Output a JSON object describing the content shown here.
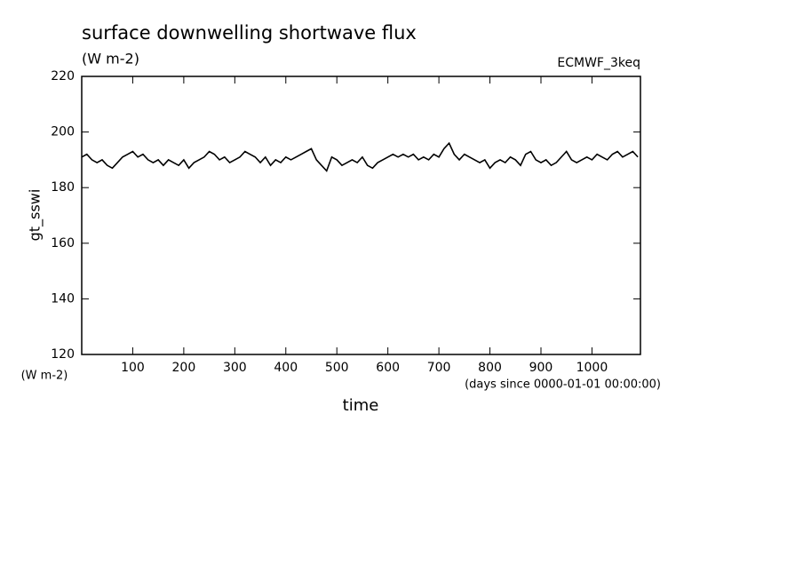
{
  "chart_data": {
    "type": "line",
    "title": "surface downwelling shortwave flux",
    "subtitle": "(W m-2)",
    "source": "ECMWF_3keq",
    "y_label": "gt_sswi",
    "y_units": "(W m-2)",
    "x_label": "time",
    "x_units": "(days since 0000-01-01 00:00:00)",
    "xlim": [
      0,
      1095
    ],
    "ylim": [
      120,
      220
    ],
    "xticks": [
      100,
      200,
      300,
      400,
      500,
      600,
      700,
      800,
      900,
      1000
    ],
    "yticks": [
      120,
      140,
      160,
      180,
      200,
      220
    ],
    "series": [
      {
        "color": "#000000",
        "x": [
          0,
          10,
          20,
          30,
          40,
          50,
          60,
          70,
          80,
          90,
          100,
          110,
          120,
          130,
          140,
          150,
          160,
          170,
          180,
          190,
          200,
          210,
          220,
          230,
          240,
          250,
          260,
          270,
          280,
          290,
          300,
          310,
          320,
          330,
          340,
          350,
          360,
          370,
          380,
          390,
          400,
          410,
          420,
          430,
          440,
          450,
          460,
          470,
          480,
          490,
          500,
          510,
          520,
          530,
          540,
          550,
          560,
          570,
          580,
          590,
          600,
          610,
          620,
          630,
          640,
          650,
          660,
          670,
          680,
          690,
          700,
          710,
          720,
          730,
          740,
          750,
          760,
          770,
          780,
          790,
          800,
          810,
          820,
          830,
          840,
          850,
          860,
          870,
          880,
          890,
          900,
          910,
          920,
          930,
          940,
          950,
          960,
          970,
          980,
          990,
          1000,
          1010,
          1020,
          1030,
          1040,
          1050,
          1060,
          1070,
          1080,
          1090
        ],
        "values": [
          191,
          192,
          190,
          189,
          190,
          188,
          187,
          189,
          191,
          192,
          193,
          191,
          192,
          190,
          189,
          190,
          188,
          190,
          189,
          188,
          190,
          187,
          189,
          190,
          191,
          193,
          192,
          190,
          191,
          189,
          190,
          191,
          193,
          192,
          191,
          189,
          191,
          188,
          190,
          189,
          191,
          190,
          191,
          192,
          193,
          194,
          190,
          188,
          186,
          191,
          190,
          188,
          189,
          190,
          189,
          191,
          188,
          187,
          189,
          190,
          191,
          192,
          191,
          192,
          191,
          192,
          190,
          191,
          190,
          192,
          191,
          194,
          196,
          192,
          190,
          192,
          191,
          190,
          189,
          190,
          187,
          189,
          190,
          189,
          191,
          190,
          188,
          192,
          193,
          190,
          189,
          190,
          188,
          189,
          191,
          193,
          190,
          189,
          190,
          191,
          190,
          192,
          191,
          190,
          192,
          193,
          191,
          192,
          193,
          191
        ]
      }
    ]
  }
}
